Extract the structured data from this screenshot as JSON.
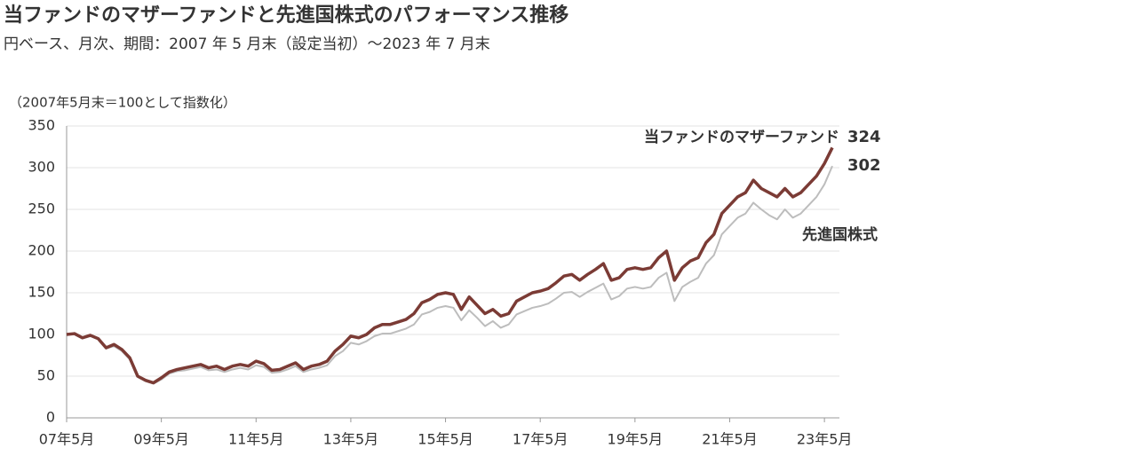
{
  "chart_data": {
    "type": "line",
    "title": "当ファンドのマザーファンドと先進国株式のパフォーマンス推移",
    "subtitle": "円ベース、月次、期間：2007 年 5 月末（設定当初）～2023 年 7 月末",
    "y_axis_note": "（2007年5月末＝100として指数化）",
    "categories": [
      "07年5月",
      null,
      null,
      null,
      null,
      null,
      null,
      null,
      null,
      null,
      null,
      null,
      "09年5月",
      null,
      null,
      null,
      null,
      null,
      null,
      null,
      null,
      null,
      null,
      null,
      "11年5月",
      null,
      null,
      null,
      null,
      null,
      null,
      null,
      null,
      null,
      null,
      null,
      "13年5月",
      null,
      null,
      null,
      null,
      null,
      null,
      null,
      null,
      null,
      null,
      null,
      "15年5月",
      null,
      null,
      null,
      null,
      null,
      null,
      null,
      null,
      null,
      null,
      null,
      "17年5月",
      null,
      null,
      null,
      null,
      null,
      null,
      null,
      null,
      null,
      null,
      null,
      "19年5月",
      null,
      null,
      null,
      null,
      null,
      null,
      null,
      null,
      null,
      null,
      null,
      "21年5月",
      null,
      null,
      null,
      null,
      null,
      null,
      null,
      null,
      null,
      null,
      null,
      "23年5月",
      null
    ],
    "series": [
      {
        "name": "当ファンドのマザーファンド",
        "color": "#7b3b35",
        "values": [
          100,
          101,
          96,
          99,
          95,
          84,
          88,
          82,
          72,
          50,
          45,
          42,
          48,
          55,
          58,
          60,
          62,
          64,
          60,
          62,
          58,
          62,
          64,
          62,
          68,
          65,
          57,
          58,
          62,
          66,
          58,
          62,
          64,
          68,
          80,
          88,
          98,
          96,
          100,
          108,
          112,
          112,
          115,
          118,
          125,
          138,
          142,
          148,
          150,
          148,
          130,
          145,
          135,
          125,
          130,
          122,
          125,
          140,
          145,
          150,
          152,
          155,
          162,
          170,
          172,
          165,
          172,
          178,
          185,
          165,
          168,
          178,
          180,
          178,
          180,
          192,
          200,
          165,
          180,
          188,
          192,
          210,
          220,
          245,
          255,
          265,
          270,
          285,
          275,
          270,
          265,
          275,
          265,
          270,
          280,
          290,
          305,
          324
        ]
      },
      {
        "name": "先進国株式",
        "color": "#bdbdbd",
        "values": [
          100,
          100,
          95,
          98,
          94,
          83,
          86,
          80,
          70,
          49,
          44,
          41,
          46,
          53,
          56,
          57,
          59,
          61,
          57,
          58,
          55,
          58,
          60,
          58,
          63,
          61,
          54,
          55,
          58,
          62,
          55,
          58,
          60,
          63,
          74,
          80,
          90,
          88,
          92,
          98,
          101,
          101,
          104,
          107,
          112,
          124,
          127,
          132,
          134,
          132,
          117,
          129,
          120,
          110,
          116,
          108,
          112,
          124,
          128,
          132,
          134,
          137,
          143,
          150,
          151,
          145,
          151,
          156,
          161,
          142,
          146,
          155,
          157,
          155,
          157,
          168,
          174,
          140,
          157,
          163,
          168,
          185,
          195,
          220,
          230,
          240,
          245,
          258,
          250,
          243,
          238,
          250,
          240,
          245,
          255,
          265,
          280,
          302
        ]
      }
    ],
    "ylim": [
      0,
      350
    ],
    "yticks": [
      0,
      50,
      100,
      150,
      200,
      250,
      300,
      350
    ],
    "grid": true
  }
}
